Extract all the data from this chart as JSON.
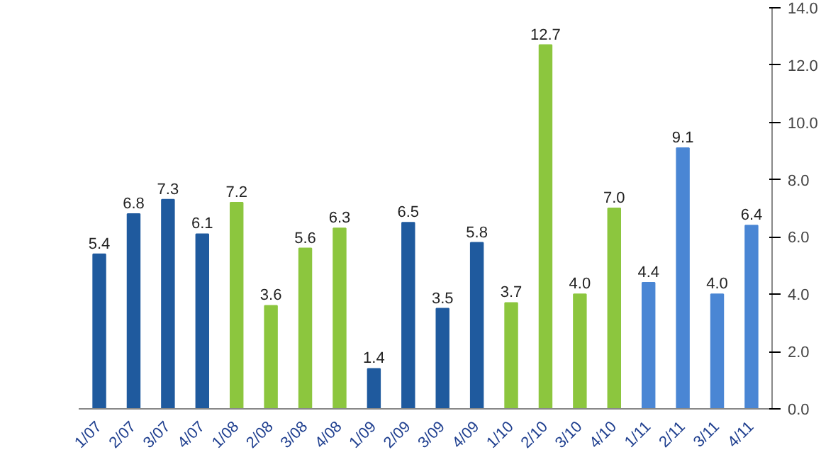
{
  "chart_data": {
    "type": "bar",
    "categories": [
      "1/07",
      "2/07",
      "3/07",
      "4/07",
      "1/08",
      "2/08",
      "3/08",
      "4/08",
      "1/09",
      "2/09",
      "3/09",
      "4/09",
      "1/10",
      "2/10",
      "3/10",
      "4/10",
      "1/11",
      "2/11",
      "3/11",
      "4/11"
    ],
    "values": [
      5.4,
      6.8,
      7.3,
      6.1,
      7.2,
      3.6,
      5.6,
      6.3,
      1.4,
      6.5,
      3.5,
      5.8,
      3.7,
      12.7,
      4.0,
      7.0,
      4.4,
      9.1,
      4.0,
      6.4
    ],
    "colors": [
      "#1f5a9e",
      "#1f5a9e",
      "#1f5a9e",
      "#1f5a9e",
      "#8cc63e",
      "#8cc63e",
      "#8cc63e",
      "#8cc63e",
      "#1f5a9e",
      "#1f5a9e",
      "#1f5a9e",
      "#1f5a9e",
      "#8cc63e",
      "#8cc63e",
      "#8cc63e",
      "#8cc63e",
      "#4a86d4",
      "#4a86d4",
      "#4a86d4",
      "#4a86d4"
    ],
    "ylim": [
      0,
      14
    ],
    "yticks": [
      {
        "value": 0,
        "label": "0.0"
      },
      {
        "value": 2,
        "label": "2.0"
      },
      {
        "value": 4,
        "label": "4.0"
      },
      {
        "value": 6,
        "label": "6.0"
      },
      {
        "value": 8,
        "label": "8.0"
      },
      {
        "value": 10,
        "label": "10.0"
      },
      {
        "value": 12,
        "label": "12.0"
      },
      {
        "value": 14,
        "label": "14.0"
      }
    ],
    "value_labels": [
      "5.4",
      "6.8",
      "7.3",
      "6.1",
      "7.2",
      "3.6",
      "5.6",
      "6.3",
      "1.4",
      "6.5",
      "3.5",
      "5.8",
      "3.7",
      "12.7",
      "4.0",
      "7.0",
      "4.4",
      "9.1",
      "4.0",
      "6.4"
    ],
    "grid": false
  }
}
